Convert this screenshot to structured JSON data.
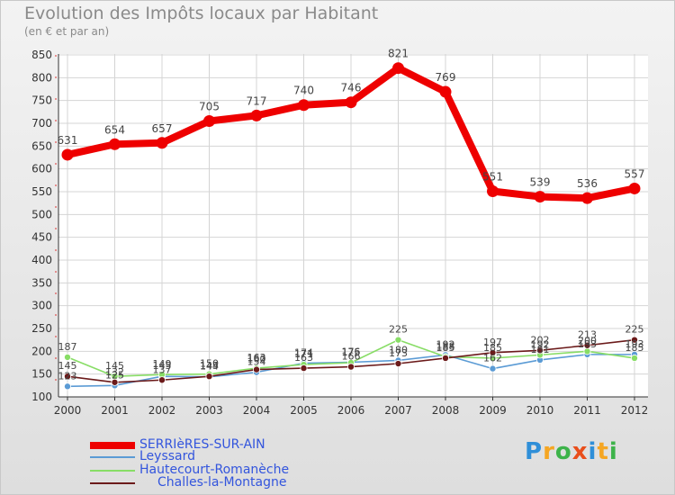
{
  "chart_data": {
    "type": "line",
    "title": "Evolution des Impôts locaux par Habitant",
    "subtitle": "(en € et par an)",
    "xlabel": "",
    "ylabel": "",
    "ylim": [
      100,
      850
    ],
    "yticks": [
      100,
      150,
      200,
      250,
      300,
      350,
      400,
      450,
      500,
      550,
      600,
      650,
      700,
      750,
      800,
      850
    ],
    "grid": true,
    "legend_position": "bottom-left",
    "x": [
      "2000",
      "2001",
      "2002",
      "2003",
      "2004",
      "2005",
      "2006",
      "2007",
      "2008",
      "2009",
      "2010",
      "2011",
      "2012"
    ],
    "series": [
      {
        "name": "SERRIèRES-SUR-AIN",
        "color": "#ee0000",
        "values": [
          631,
          654,
          657,
          705,
          717,
          740,
          746,
          821,
          769,
          551,
          539,
          536,
          557
        ],
        "labels": [
          "631",
          "654",
          "657",
          "705",
          "717",
          "740",
          "746",
          "821",
          "769",
          "551",
          "539",
          "536",
          "557"
        ]
      },
      {
        "name": "Leyssard",
        "color": "#5b9bd5",
        "values": [
          123,
          125,
          145,
          144,
          154,
          174,
          176,
          180,
          192,
          162,
          181,
          193,
          193
        ],
        "labels": [
          "123",
          "125",
          "145",
          "144",
          "154",
          "174",
          "176",
          "180",
          "192",
          "162",
          "181",
          "193",
          "193"
        ]
      },
      {
        "name": "Hautecourt-Romanèche",
        "color": "#88dd66",
        "values": [
          187,
          145,
          149,
          150,
          163,
          171,
          175,
          225,
          188,
          185,
          192,
          200,
          185
        ],
        "labels": [
          "187",
          "145",
          "149",
          "150",
          "163",
          "171",
          "175",
          "225",
          "188",
          "185",
          "192",
          "200",
          "185"
        ]
      },
      {
        "name": "Challes-la-Montagne",
        "color": "#6b1a1a",
        "values": [
          145,
          132,
          137,
          145,
          160,
          163,
          166,
          173,
          185,
          197,
          202,
          213,
          225
        ],
        "labels": [
          "145",
          "132",
          "137",
          "145",
          "160",
          "163",
          "166",
          "173",
          "185",
          "197",
          "202",
          "213",
          "225"
        ]
      }
    ]
  },
  "logo": {
    "letters": [
      "P",
      "r",
      "o",
      "x",
      "i",
      "t",
      "i"
    ],
    "colors": [
      "#2f8fd8",
      "#f5a623",
      "#3db34a",
      "#e94e1b",
      "#2f8fd8",
      "#f5a623",
      "#3db34a"
    ]
  }
}
